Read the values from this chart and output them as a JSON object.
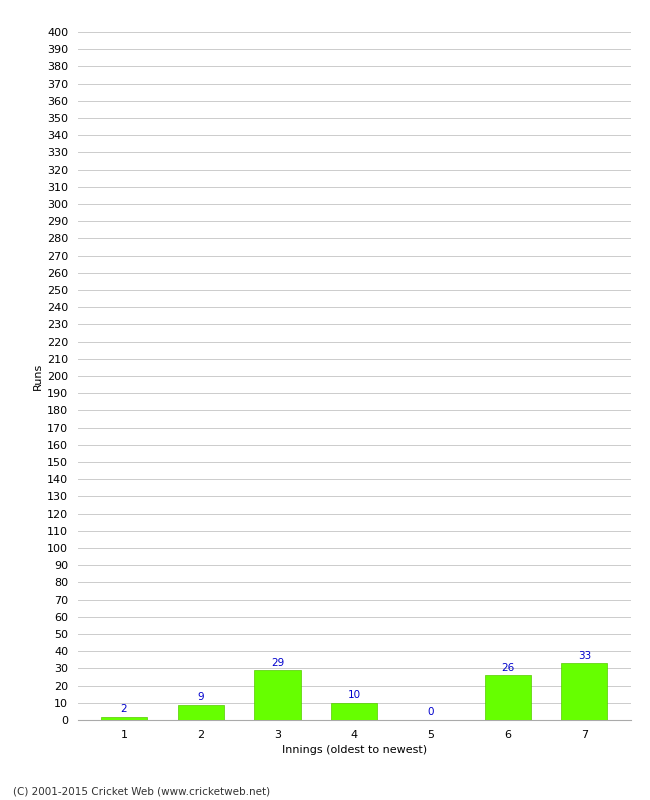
{
  "categories": [
    1,
    2,
    3,
    4,
    5,
    6,
    7
  ],
  "values": [
    2,
    9,
    29,
    10,
    0,
    26,
    33
  ],
  "bar_color": "#66ff00",
  "bar_edge_color": "#55cc00",
  "label_color": "#0000cc",
  "xlabel": "Innings (oldest to newest)",
  "ylabel": "Runs",
  "ylim": [
    0,
    400
  ],
  "ytick_step": 10,
  "background_color": "#ffffff",
  "grid_color": "#cccccc",
  "footer": "(C) 2001-2015 Cricket Web (www.cricketweb.net)",
  "label_fontsize": 7.5,
  "axis_fontsize": 8,
  "footer_fontsize": 7.5,
  "ylabel_fontsize": 8
}
